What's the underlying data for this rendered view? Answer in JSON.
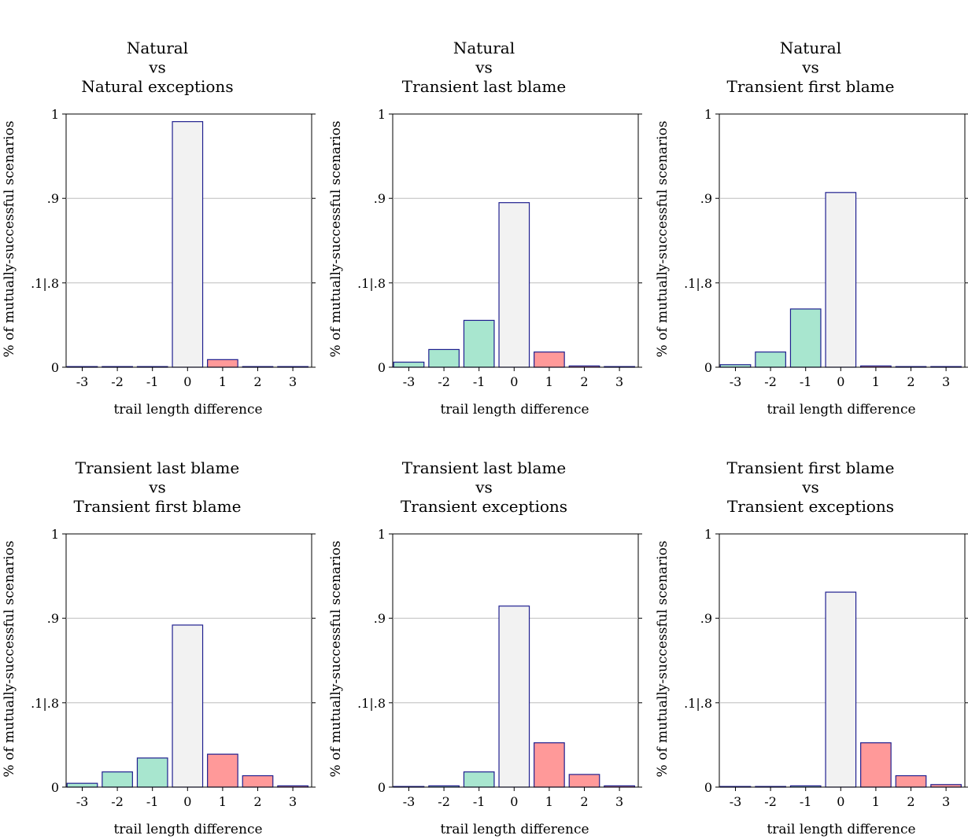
{
  "chart_data": [
    {
      "type": "bar",
      "title": [
        "Natural",
        "vs",
        "Natural exceptions"
      ],
      "xlabel": "trail length difference",
      "ylabel": "% of mutually-successful scenarios",
      "categories": [
        "-3",
        "-2",
        "-1",
        "0",
        "1",
        "2",
        "3"
      ],
      "values": [
        0,
        0,
        0,
        0.97,
        0.03,
        0,
        0
      ],
      "ytick_labels": [
        "0",
        ".1|.8",
        ".9",
        "1"
      ],
      "ylim": [
        0,
        1
      ],
      "grid": "horizontal",
      "colors": [
        "#a8e6cf",
        "#a8e6cf",
        "#a8e6cf",
        "#f2f2f2",
        "#ff9999",
        "#ff9999",
        "#ff9999"
      ]
    },
    {
      "type": "bar",
      "title": [
        "Natural",
        "vs",
        "Transient last blame"
      ],
      "xlabel": "trail length difference",
      "ylabel": "% of mutually-successful scenarios",
      "categories": [
        "-3",
        "-2",
        "-1",
        "0",
        "1",
        "2",
        "3"
      ],
      "values": [
        0.02,
        0.07,
        0.185,
        0.65,
        0.06,
        0.005,
        0
      ],
      "ytick_labels": [
        "0",
        ".1|.8",
        ".9",
        "1"
      ],
      "ylim": [
        0,
        1
      ],
      "grid": "horizontal",
      "colors": [
        "#a8e6cf",
        "#a8e6cf",
        "#a8e6cf",
        "#f2f2f2",
        "#ff9999",
        "#ff9999",
        "#ff9999"
      ]
    },
    {
      "type": "bar",
      "title": [
        "Natural",
        "vs",
        "Transient first blame"
      ],
      "xlabel": "trail length difference",
      "ylabel": "% of mutually-successful scenarios",
      "categories": [
        "-3",
        "-2",
        "-1",
        "0",
        "1",
        "2",
        "3"
      ],
      "values": [
        0.01,
        0.06,
        0.23,
        0.69,
        0.005,
        0,
        0
      ],
      "ytick_labels": [
        "0",
        ".1|.8",
        ".9",
        "1"
      ],
      "ylim": [
        0,
        1
      ],
      "grid": "horizontal",
      "colors": [
        "#a8e6cf",
        "#a8e6cf",
        "#a8e6cf",
        "#f2f2f2",
        "#ff9999",
        "#ff9999",
        "#ff9999"
      ]
    },
    {
      "type": "bar",
      "title": [
        "Transient last blame",
        "vs",
        "Transient first blame"
      ],
      "xlabel": "trail length difference",
      "ylabel": "% of mutually-successful scenarios",
      "categories": [
        "-3",
        "-2",
        "-1",
        "0",
        "1",
        "2",
        "3"
      ],
      "values": [
        0.015,
        0.06,
        0.115,
        0.64,
        0.13,
        0.045,
        0.005
      ],
      "ytick_labels": [
        "0",
        ".1|.8",
        ".9",
        "1"
      ],
      "ylim": [
        0,
        1
      ],
      "grid": "horizontal",
      "colors": [
        "#a8e6cf",
        "#a8e6cf",
        "#a8e6cf",
        "#f2f2f2",
        "#ff9999",
        "#ff9999",
        "#ff9999"
      ]
    },
    {
      "type": "bar",
      "title": [
        "Transient last blame",
        "vs",
        "Transient exceptions"
      ],
      "xlabel": "trail length difference",
      "ylabel": "% of mutually-successful scenarios",
      "categories": [
        "-3",
        "-2",
        "-1",
        "0",
        "1",
        "2",
        "3"
      ],
      "values": [
        0,
        0.005,
        0.06,
        0.715,
        0.175,
        0.05,
        0.005
      ],
      "ytick_labels": [
        "0",
        ".1|.8",
        ".9",
        "1"
      ],
      "ylim": [
        0,
        1
      ],
      "grid": "horizontal",
      "colors": [
        "#a8e6cf",
        "#a8e6cf",
        "#a8e6cf",
        "#f2f2f2",
        "#ff9999",
        "#ff9999",
        "#ff9999"
      ]
    },
    {
      "type": "bar",
      "title": [
        "Transient first blame",
        "vs",
        "Transient exceptions"
      ],
      "xlabel": "trail length difference",
      "ylabel": "% of mutually-successful scenarios",
      "categories": [
        "-3",
        "-2",
        "-1",
        "0",
        "1",
        "2",
        "3"
      ],
      "values": [
        0,
        0,
        0.005,
        0.77,
        0.175,
        0.045,
        0.01
      ],
      "ytick_labels": [
        "0",
        ".1|.8",
        ".9",
        "1"
      ],
      "ylim": [
        0,
        1
      ],
      "grid": "horizontal",
      "colors": [
        "#a8e6cf",
        "#a8e6cf",
        "#a8e6cf",
        "#f2f2f2",
        "#ff9999",
        "#ff9999",
        "#ff9999"
      ]
    }
  ]
}
